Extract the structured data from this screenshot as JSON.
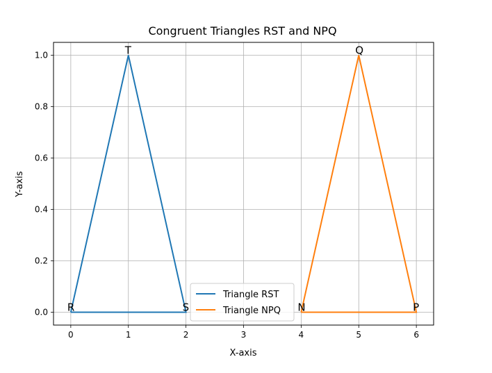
{
  "chart_data": {
    "type": "line",
    "title": "Congruent Triangles RST and NPQ",
    "xlabel": "X-axis",
    "ylabel": "Y-axis",
    "xlim": [
      -0.3,
      6.3
    ],
    "ylim": [
      -0.05,
      1.05
    ],
    "xticks": [
      0,
      1,
      2,
      3,
      4,
      5,
      6
    ],
    "yticks": [
      0.0,
      0.2,
      0.4,
      0.6,
      0.8,
      1.0
    ],
    "xtick_labels": [
      "0",
      "1",
      "2",
      "3",
      "4",
      "5",
      "6"
    ],
    "ytick_labels": [
      "0.0",
      "0.2",
      "0.4",
      "0.6",
      "0.8",
      "1.0"
    ],
    "grid": true,
    "legend_position": "lower-center",
    "series": [
      {
        "name": "Triangle RST",
        "color": "#1f77b4",
        "x": [
          0,
          2,
          1,
          0
        ],
        "y": [
          0,
          0,
          1,
          0
        ]
      },
      {
        "name": "Triangle NPQ",
        "color": "#ff7f0e",
        "x": [
          4,
          6,
          5,
          4
        ],
        "y": [
          0,
          0,
          1,
          0
        ]
      }
    ],
    "annotations": [
      {
        "text": "R",
        "x": 0,
        "y": 0
      },
      {
        "text": "S",
        "x": 2,
        "y": 0
      },
      {
        "text": "T",
        "x": 1,
        "y": 1
      },
      {
        "text": "N",
        "x": 4,
        "y": 0
      },
      {
        "text": "P",
        "x": 6,
        "y": 0
      },
      {
        "text": "Q",
        "x": 5,
        "y": 1
      }
    ]
  }
}
